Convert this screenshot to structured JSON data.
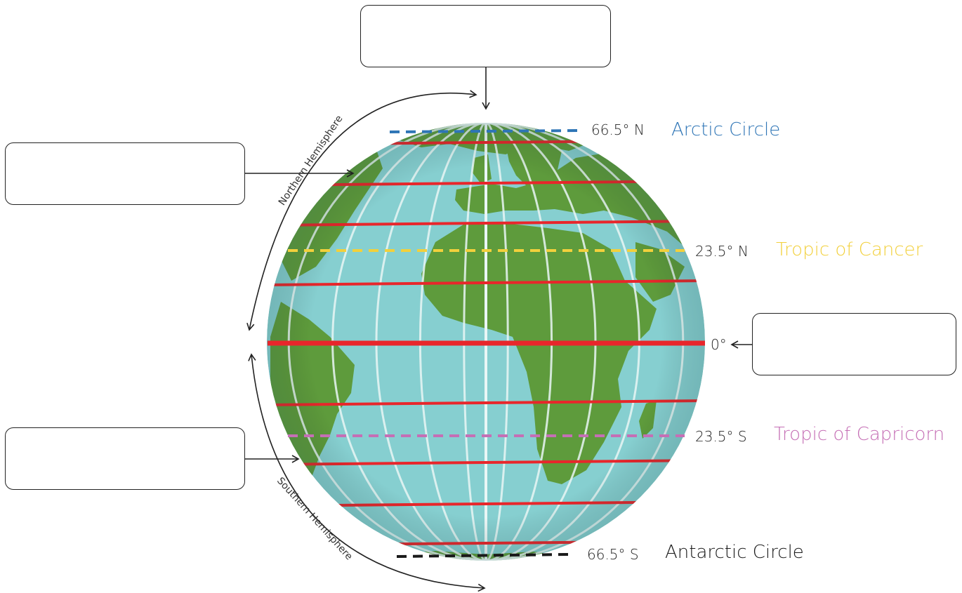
{
  "hemispheres": {
    "north_label": "Northern Hemisphere",
    "south_label": "Southern Hemisphere"
  },
  "latitudes": [
    {
      "key": "arctic",
      "degree": "66.5° N",
      "name": "Arctic Circle",
      "color": "#2e75b6"
    },
    {
      "key": "cancer",
      "degree": "23.5° N",
      "name": "Tropic of Cancer",
      "color": "#f2d03c"
    },
    {
      "key": "equator",
      "degree": "0°",
      "name": "",
      "color": "#e8262b"
    },
    {
      "key": "capricorn",
      "degree": "23.5° S",
      "name": "Tropic of Capricorn",
      "color": "#c56fb5"
    },
    {
      "key": "antarctic",
      "degree": "66.5° S",
      "name": "Antarctic Circle",
      "color": "#1a1a1a"
    }
  ],
  "label_boxes": [
    {
      "key": "top",
      "text": ""
    },
    {
      "key": "upper-left",
      "text": ""
    },
    {
      "key": "right",
      "text": ""
    },
    {
      "key": "lower-left",
      "text": ""
    }
  ],
  "colors": {
    "ocean": "#86cfd0",
    "land": "#5e9b3c",
    "parallel": "#e8262b",
    "meridian": "#e9f6f5"
  }
}
